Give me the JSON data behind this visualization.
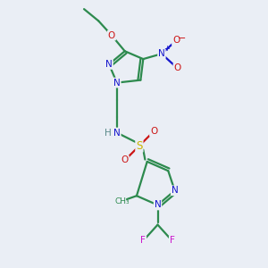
{
  "background_color": "#eaeef5",
  "figsize": [
    3.0,
    3.0
  ],
  "dpi": 100,
  "colors": {
    "C": "#2d8a4e",
    "N": "#1515cc",
    "O": "#cc1515",
    "S": "#c8b400",
    "F": "#cc15cc",
    "H": "#5a8a8a",
    "bond": "#2d8a4e"
  },
  "bond_lw": 1.6
}
